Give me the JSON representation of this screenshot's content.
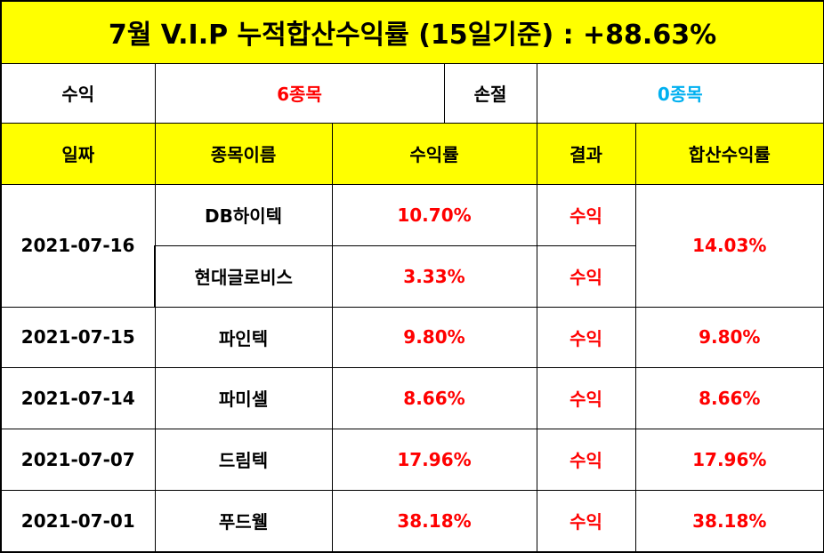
{
  "title": "7월 V.I.P 누적합산수익률 (15일기준) : +88.63%",
  "summary": {
    "profit_label": "수익",
    "profit_value": "6종목",
    "loss_label": "손절",
    "loss_value": "0종목"
  },
  "headers": {
    "date": "일짜",
    "name": "종목이름",
    "rate": "수익률",
    "result": "결과",
    "combined": "합산수익률"
  },
  "rows": [
    {
      "date": "2021-07-16",
      "name": "DB하이텍",
      "rate": "10.70%",
      "result": "수익",
      "combined": "14.03%"
    },
    {
      "date": "",
      "name": "현대글로비스",
      "rate": "3.33%",
      "result": "수익",
      "combined": ""
    },
    {
      "date": "2021-07-15",
      "name": "파인텍",
      "rate": "9.80%",
      "result": "수익",
      "combined": "9.80%"
    },
    {
      "date": "2021-07-14",
      "name": "파미셀",
      "rate": "8.66%",
      "result": "수익",
      "combined": "8.66%"
    },
    {
      "date": "2021-07-07",
      "name": "드림텍",
      "rate": "17.96%",
      "result": "수익",
      "combined": "17.96%"
    },
    {
      "date": "2021-07-01",
      "name": "푸드웰",
      "rate": "38.18%",
      "result": "수익",
      "combined": "38.18%"
    }
  ],
  "colors": {
    "header_bg": "#ffff00",
    "profit_text": "#ff0000",
    "loss_text": "#00b0f0",
    "border": "#000000"
  }
}
